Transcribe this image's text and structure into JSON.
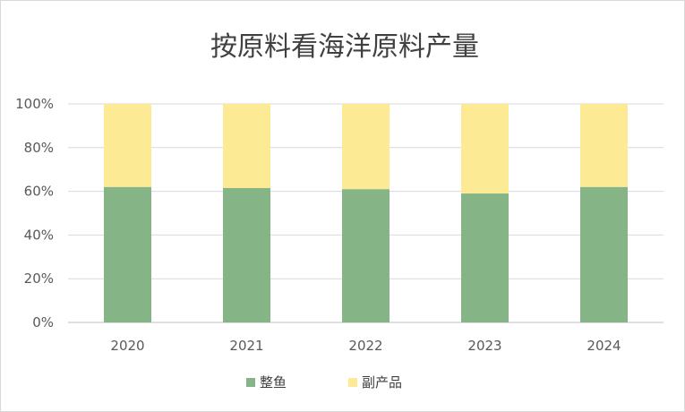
{
  "chart_data": {
    "type": "bar",
    "stacked": true,
    "title": "按原料看海洋原料产量",
    "categories": [
      "2020",
      "2021",
      "2022",
      "2023",
      "2024"
    ],
    "series": [
      {
        "name": "整鱼",
        "values": [
          62,
          61.5,
          61,
          59,
          62
        ],
        "color": "#85b586"
      },
      {
        "name": "副产品",
        "values": [
          38,
          38.5,
          39,
          41,
          38
        ],
        "color": "#fdea94"
      }
    ],
    "ylim": [
      0,
      100
    ],
    "y_ticks": [
      "0%",
      "20%",
      "40%",
      "60%",
      "80%",
      "100%"
    ],
    "grid": true,
    "legend_position": "bottom",
    "colors": {
      "grid": "#d9d9d9",
      "axis": "#bfbfbf"
    }
  }
}
